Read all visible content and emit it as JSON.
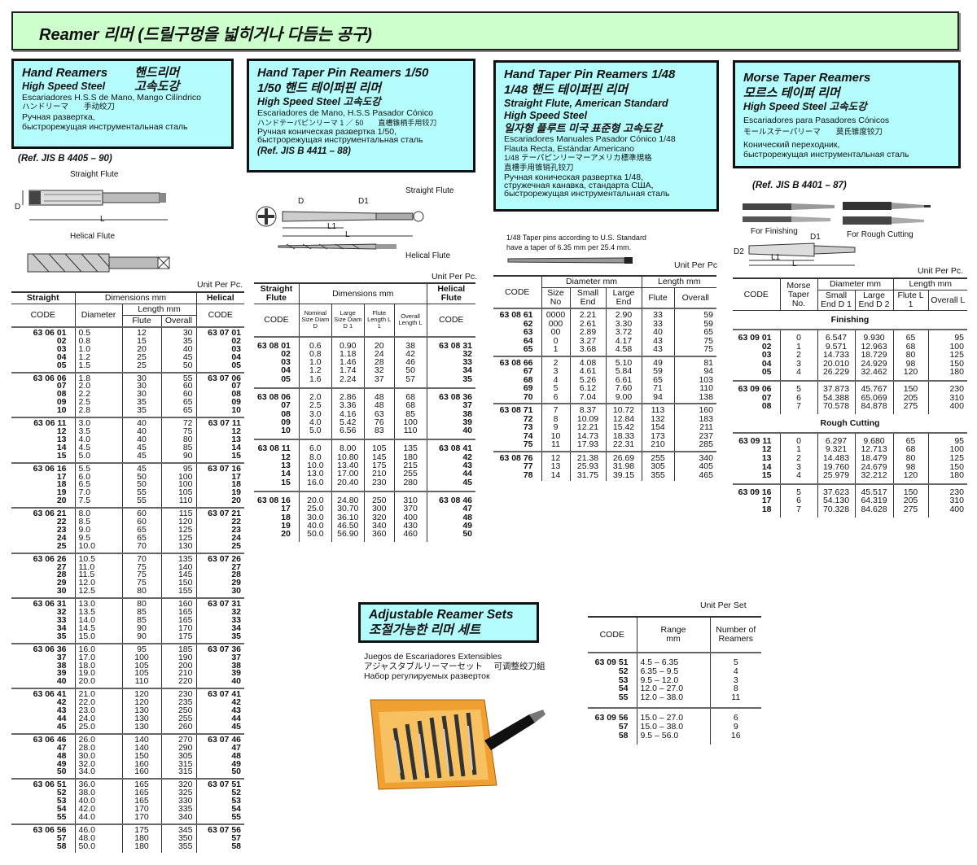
{
  "title": "Reamer  리머 (드릴구멍을 넓히거나 다듬는 공구)",
  "hand_reamers": {
    "title_en": "Hand Reamers",
    "title_ko": "핸드리머",
    "steel_en": "High Speed Steel",
    "steel_ko": "고속도강",
    "es": "Escariadores H.S.S de Mano, Mango Cilíndrico",
    "ja": "ハンドリーマ　　手动绞刀",
    "ru1": "Ручная развертка,",
    "ru2": "быстрорежущая инструментальная сталь",
    "ref": "(Ref. JIS B 4405 – 90)",
    "straight_label": "Straight Flute",
    "helical_label": "Helical Flute",
    "dim_d": "D",
    "dim_l": "L",
    "unit": "Unit Per Pc.",
    "headers": {
      "straight": "Straight",
      "dims": "Dimensions mm",
      "helical": "Helical",
      "code": "CODE",
      "diameter": "Diameter",
      "length": "Length mm",
      "flute": "Flute",
      "overall": "Overall",
      "code2": "CODE"
    },
    "groups": [
      [
        [
          "63 06 01",
          "0.5",
          "12",
          "30",
          "63 07 01"
        ],
        [
          "02",
          "0.8",
          "15",
          "35",
          "02"
        ],
        [
          "03",
          "1.0",
          "20",
          "40",
          "03"
        ],
        [
          "04",
          "1.2",
          "25",
          "45",
          "04"
        ],
        [
          "05",
          "1.5",
          "25",
          "50",
          "05"
        ]
      ],
      [
        [
          "63 06 06",
          "1.8",
          "30",
          "55",
          "63 07 06"
        ],
        [
          "07",
          "2.0",
          "30",
          "60",
          "07"
        ],
        [
          "08",
          "2.2",
          "30",
          "60",
          "08"
        ],
        [
          "09",
          "2.5",
          "35",
          "65",
          "09"
        ],
        [
          "10",
          "2.8",
          "35",
          "65",
          "10"
        ]
      ],
      [
        [
          "63 06 11",
          "3.0",
          "40",
          "72",
          "63 07 11"
        ],
        [
          "12",
          "3.5",
          "40",
          "75",
          "12"
        ],
        [
          "13",
          "4.0",
          "40",
          "80",
          "13"
        ],
        [
          "14",
          "4.5",
          "45",
          "85",
          "14"
        ],
        [
          "15",
          "5.0",
          "45",
          "90",
          "15"
        ]
      ],
      [
        [
          "63 06 16",
          "5.5",
          "45",
          "95",
          "63 07 16"
        ],
        [
          "17",
          "6.0",
          "50",
          "100",
          "17"
        ],
        [
          "18",
          "6.5",
          "50",
          "100",
          "18"
        ],
        [
          "19",
          "7.0",
          "55",
          "105",
          "19"
        ],
        [
          "20",
          "7.5",
          "55",
          "110",
          "20"
        ]
      ],
      [
        [
          "63 06 21",
          "8.0",
          "60",
          "115",
          "63 07 21"
        ],
        [
          "22",
          "8.5",
          "60",
          "120",
          "22"
        ],
        [
          "23",
          "9.0",
          "65",
          "125",
          "23"
        ],
        [
          "24",
          "9.5",
          "65",
          "125",
          "24"
        ],
        [
          "25",
          "10.0",
          "70",
          "130",
          "25"
        ]
      ],
      [
        [
          "63 06 26",
          "10.5",
          "70",
          "135",
          "63 07 26"
        ],
        [
          "27",
          "11.0",
          "75",
          "140",
          "27"
        ],
        [
          "28",
          "11.5",
          "75",
          "145",
          "28"
        ],
        [
          "29",
          "12.0",
          "75",
          "150",
          "29"
        ],
        [
          "30",
          "12.5",
          "80",
          "155",
          "30"
        ]
      ],
      [
        [
          "63 06 31",
          "13.0",
          "80",
          "160",
          "63 07 31"
        ],
        [
          "32",
          "13.5",
          "85",
          "165",
          "32"
        ],
        [
          "33",
          "14.0",
          "85",
          "165",
          "33"
        ],
        [
          "34",
          "14.5",
          "90",
          "170",
          "34"
        ],
        [
          "35",
          "15.0",
          "90",
          "175",
          "35"
        ]
      ],
      [
        [
          "63 06 36",
          "16.0",
          "95",
          "185",
          "63 07 36"
        ],
        [
          "37",
          "17.0",
          "100",
          "190",
          "37"
        ],
        [
          "38",
          "18.0",
          "105",
          "200",
          "38"
        ],
        [
          "39",
          "19.0",
          "105",
          "210",
          "39"
        ],
        [
          "40",
          "20.0",
          "110",
          "220",
          "40"
        ]
      ],
      [
        [
          "63 06 41",
          "21.0",
          "120",
          "230",
          "63 07 41"
        ],
        [
          "42",
          "22.0",
          "120",
          "235",
          "42"
        ],
        [
          "43",
          "23.0",
          "130",
          "250",
          "43"
        ],
        [
          "44",
          "24.0",
          "130",
          "255",
          "44"
        ],
        [
          "45",
          "25.0",
          "130",
          "260",
          "45"
        ]
      ],
      [
        [
          "63 06 46",
          "26.0",
          "140",
          "270",
          "63 07 46"
        ],
        [
          "47",
          "28.0",
          "140",
          "290",
          "47"
        ],
        [
          "48",
          "30.0",
          "150",
          "305",
          "48"
        ],
        [
          "49",
          "32.0",
          "160",
          "315",
          "49"
        ],
        [
          "50",
          "34.0",
          "160",
          "315",
          "50"
        ]
      ],
      [
        [
          "63 06 51",
          "36.0",
          "165",
          "320",
          "63 07 51"
        ],
        [
          "52",
          "38.0",
          "165",
          "325",
          "52"
        ],
        [
          "53",
          "40.0",
          "165",
          "330",
          "53"
        ],
        [
          "54",
          "42.0",
          "170",
          "335",
          "54"
        ],
        [
          "55",
          "44.0",
          "170",
          "340",
          "55"
        ]
      ],
      [
        [
          "63 06 56",
          "46.0",
          "175",
          "345",
          "63 07 56"
        ],
        [
          "57",
          "48.0",
          "180",
          "350",
          "57"
        ],
        [
          "58",
          "50.0",
          "180",
          "355",
          "58"
        ]
      ]
    ]
  },
  "taper50": {
    "title_en": "Hand Taper Pin Reamers 1/50",
    "title_ko": "1/50 핸드 테이퍼핀 리머",
    "steel_en": "High Speed Steel",
    "steel_ko": "고속도강",
    "es": "Escariadores de Mano, H.S.S Pasador Cónico",
    "ja": "ハンドテーパピンリーマ 1 ／ 50　　直槽锥柄手用铰刀",
    "ru1": "Ручная коническая развертка 1/50,",
    "ru2": "быстрорежущая инструментальная сталь",
    "ref": "(Ref. JIS B 4411 – 88)",
    "straight_label": "Straight Flute",
    "helical_label": "Helical Flute",
    "dim_d": "D",
    "dim_d1": "D1",
    "dim_l1": "L1",
    "dim_l": "L",
    "unit": "Unit Per Pc.",
    "headers": {
      "straight": "Straight Flute",
      "dims": "Dimensions mm",
      "helical": "Helical Flute",
      "code": "CODE",
      "nominal": "Nominal Size Diam D",
      "large": "Large Size Diam D 1",
      "flute": "Flute Length L 1",
      "overall": "Overall Length L",
      "code2": "CODE"
    },
    "groups": [
      [
        [
          "63 08 01",
          "0.6",
          "0.90",
          "20",
          "38",
          "63 08 31"
        ],
        [
          "02",
          "0.8",
          "1.18",
          "24",
          "42",
          "32"
        ],
        [
          "03",
          "1.0",
          "1.46",
          "28",
          "46",
          "33"
        ],
        [
          "04",
          "1.2",
          "1.74",
          "32",
          "50",
          "34"
        ],
        [
          "05",
          "1.6",
          "2.24",
          "37",
          "57",
          "35"
        ]
      ],
      [
        [
          "63 08 06",
          "2.0",
          "2.86",
          "48",
          "68",
          "63 08 36"
        ],
        [
          "07",
          "2.5",
          "3.36",
          "48",
          "68",
          "37"
        ],
        [
          "08",
          "3.0",
          "4.16",
          "63",
          "85",
          "38"
        ],
        [
          "09",
          "4.0",
          "5.42",
          "76",
          "100",
          "39"
        ],
        [
          "10",
          "5.0",
          "6.56",
          "83",
          "110",
          "40"
        ]
      ],
      [
        [
          "63 08 11",
          "6.0",
          "8.00",
          "105",
          "135",
          "63 08 41"
        ],
        [
          "12",
          "8.0",
          "10.80",
          "145",
          "180",
          "42"
        ],
        [
          "13",
          "10.0",
          "13.40",
          "175",
          "215",
          "43"
        ],
        [
          "14",
          "13.0",
          "17.00",
          "210",
          "255",
          "44"
        ],
        [
          "15",
          "16.0",
          "20.40",
          "230",
          "280",
          "45"
        ]
      ],
      [
        [
          "63 08 16",
          "20.0",
          "24.80",
          "250",
          "310",
          "63 08 46"
        ],
        [
          "17",
          "25.0",
          "30.70",
          "300",
          "370",
          "47"
        ],
        [
          "18",
          "30.0",
          "36.10",
          "320",
          "400",
          "48"
        ],
        [
          "19",
          "40.0",
          "46.50",
          "340",
          "430",
          "49"
        ],
        [
          "20",
          "50.0",
          "56.90",
          "360",
          "460",
          "50"
        ]
      ]
    ]
  },
  "taper48": {
    "title_en": "Hand Taper Pin Reamers 1/48",
    "title_ko": "1/48 핸드 테이퍼핀 리머",
    "sub1": "Straight Flute, American Standard",
    "sub2": "High Speed Steel",
    "sub_ko": "일자형 플루트 미국 표준형 고속도강",
    "es1": "Escariadores Manuales Pasador Cónico 1/48",
    "es2": "Flauta Recta, Estándar Americano",
    "ja1": "1/48 テーパピンリーマーアメリカ標準規格",
    "ja2": "直槽手用锥销孔铰刀",
    "ru1": "Ручная коническая развертка 1/48,",
    "ru2": "стружечная канавка, стандарта США,",
    "ru3": "быстрорежущая инструментальная сталь",
    "note1": "1/48 Taper pins according to U.S. Standard",
    "note2": "have a taper of 6.35 mm per 25.4 mm.",
    "unit": "Unit Per Pc",
    "headers": {
      "code": "CODE",
      "diameter": "Diameter mm",
      "length": "Length mm",
      "size": "Size No",
      "small": "Small End",
      "large": "Large End",
      "flute": "Flute",
      "overall": "Overall"
    },
    "groups": [
      [
        [
          "63 08 61",
          "0000",
          "2.21",
          "2.90",
          "33",
          "59"
        ],
        [
          "62",
          "000",
          "2.61",
          "3.30",
          "33",
          "59"
        ],
        [
          "63",
          "00",
          "2.89",
          "3.72",
          "40",
          "65"
        ],
        [
          "64",
          "0",
          "3.27",
          "4.17",
          "43",
          "75"
        ],
        [
          "65",
          "1",
          "3.68",
          "4.58",
          "43",
          "75"
        ]
      ],
      [
        [
          "63 08 66",
          "2",
          "4.08",
          "5.10",
          "49",
          "81"
        ],
        [
          "67",
          "3",
          "4.61",
          "5.84",
          "59",
          "94"
        ],
        [
          "68",
          "4",
          "5.26",
          "6.61",
          "65",
          "103"
        ],
        [
          "69",
          "5",
          "6.12",
          "7.60",
          "71",
          "110"
        ],
        [
          "70",
          "6",
          "7.04",
          "9.00",
          "94",
          "138"
        ]
      ],
      [
        [
          "63 08 71",
          "7",
          "8.37",
          "10.72",
          "113",
          "160"
        ],
        [
          "72",
          "8",
          "10.09",
          "12.84",
          "132",
          "183"
        ],
        [
          "73",
          "9",
          "12.21",
          "15.42",
          "154",
          "211"
        ],
        [
          "74",
          "10",
          "14.73",
          "18.33",
          "173",
          "237"
        ],
        [
          "75",
          "11",
          "17.93",
          "22.31",
          "210",
          "285"
        ]
      ],
      [
        [
          "63 08 76",
          "12",
          "21.38",
          "26.69",
          "255",
          "340"
        ],
        [
          "77",
          "13",
          "25.93",
          "31.98",
          "305",
          "405"
        ],
        [
          "78",
          "14",
          "31.75",
          "39.15",
          "355",
          "465"
        ]
      ]
    ]
  },
  "morse": {
    "title_en": "Morse Taper Reamers",
    "title_ko": "모르스 테이퍼 리머",
    "steel_en": "High Speed Steel",
    "steel_ko": "고속도강",
    "es": "Escariadores para Pasadores Cónicos",
    "ja": "モールステーパリーマ　　莫氏锥度铰刀",
    "ru1": "Конический переходник,",
    "ru2": "быстрорежущая инструментальная сталь",
    "ref": "(Ref. JIS B 4401 – 87)",
    "finish_label": "For Finishing",
    "rough_label": "For Rough Cutting",
    "dim_d1": "D1",
    "dim_d2": "D2",
    "dim_l1": "L1",
    "dim_l": "L",
    "unit": "Unit Per Pc.",
    "headers": {
      "code": "CODE",
      "taper": "Morse Taper No.",
      "diameter": "Diameter mm",
      "length": "Length mm",
      "small": "Small End D 1",
      "large": "Large End D 2",
      "flute": "Flute L 1",
      "overall": "Overall L"
    },
    "sections": [
      {
        "label": "Finishing",
        "groups": [
          [
            [
              "63 09 01",
              "0",
              "6.547",
              "9.930",
              "65",
              "95"
            ],
            [
              "02",
              "1",
              "9.571",
              "12.963",
              "68",
              "100"
            ],
            [
              "03",
              "2",
              "14.733",
              "18.729",
              "80",
              "125"
            ],
            [
              "04",
              "3",
              "20.010",
              "24.929",
              "98",
              "150"
            ],
            [
              "05",
              "4",
              "26.229",
              "32.462",
              "120",
              "180"
            ]
          ],
          [
            [
              "63 09 06",
              "5",
              "37.873",
              "45.767",
              "150",
              "230"
            ],
            [
              "07",
              "6",
              "54.388",
              "65.069",
              "205",
              "310"
            ],
            [
              "08",
              "7",
              "70.578",
              "84.878",
              "275",
              "400"
            ]
          ]
        ]
      },
      {
        "label": "Rough Cutting",
        "groups": [
          [
            [
              "63 09 11",
              "0",
              "6.297",
              "9.680",
              "65",
              "95"
            ],
            [
              "12",
              "1",
              "9.321",
              "12.713",
              "68",
              "100"
            ],
            [
              "13",
              "2",
              "14.483",
              "18.479",
              "80",
              "125"
            ],
            [
              "14",
              "3",
              "19.760",
              "24.679",
              "98",
              "150"
            ],
            [
              "15",
              "4",
              "25.979",
              "32.212",
              "120",
              "180"
            ]
          ],
          [
            [
              "63 09 16",
              "5",
              "37.623",
              "45.517",
              "150",
              "230"
            ],
            [
              "17",
              "6",
              "54.130",
              "64.319",
              "205",
              "310"
            ],
            [
              "18",
              "7",
              "70.328",
              "84.628",
              "275",
              "400"
            ]
          ]
        ]
      }
    ]
  },
  "adjustable": {
    "title_en": "Adjustable Reamer Sets",
    "title_ko": "조절가능한 리머 세트",
    "es": "Juegos de Escariadores Extensibles",
    "ja": "アジャスタブルリーマーセット　 可调整绞刀組",
    "ru": "Набор регулируемых разверток",
    "unit": "Unit Per Set",
    "headers": {
      "code": "CODE",
      "range": "Range mm",
      "number": "Number of Reamers"
    },
    "groups": [
      [
        [
          "63 09 51",
          "4.5   –   6.35",
          "5"
        ],
        [
          "52",
          "6.35 –   9.5",
          "4"
        ],
        [
          "53",
          "9.5   – 12.0",
          "3"
        ],
        [
          "54",
          "12.0   – 27.0",
          "8"
        ],
        [
          "55",
          "12.0   – 38.0",
          "11"
        ]
      ],
      [
        [
          "63 09 56",
          "15.0   – 27.0",
          "6"
        ],
        [
          "57",
          "15.0   – 38.0",
          "9"
        ],
        [
          "58",
          "9.5   – 56.0",
          "16"
        ]
      ]
    ]
  },
  "colors": {
    "banner": "#ccffcc",
    "box": "#b4fbfb",
    "case": "#f0a030"
  }
}
